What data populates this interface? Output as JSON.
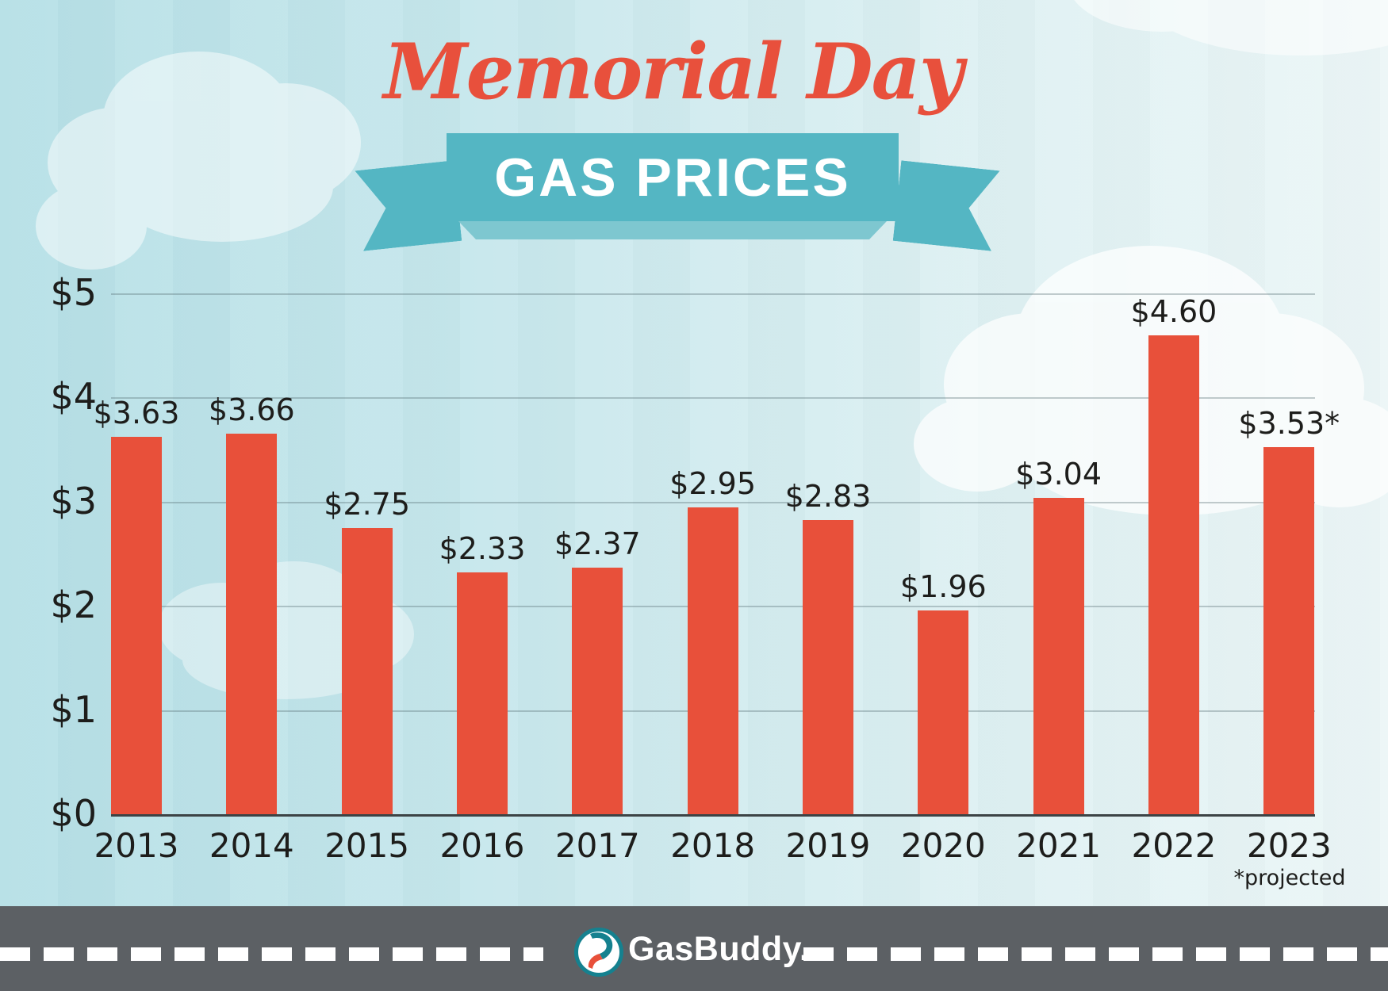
{
  "header": {
    "script_title": "Memorial Day",
    "banner_title": "GAS PRICES"
  },
  "chart_data": {
    "type": "bar",
    "title": "Memorial Day Gas Prices",
    "categories": [
      "2013",
      "2014",
      "2015",
      "2016",
      "2017",
      "2018",
      "2019",
      "2020",
      "2021",
      "2022",
      "2023"
    ],
    "values": [
      3.63,
      3.66,
      2.75,
      2.33,
      2.37,
      2.95,
      2.83,
      1.96,
      3.04,
      4.6,
      3.53
    ],
    "bar_labels": [
      "$3.63",
      "$3.66",
      "$2.75",
      "$2.33",
      "$2.37",
      "$2.95",
      "$2.83",
      "$1.96",
      "$3.04",
      "$4.60",
      "$3.53*"
    ],
    "y_tick_labels": [
      "$0",
      "$1",
      "$2",
      "$3",
      "$4",
      "$5"
    ],
    "y_tick_values": [
      0,
      1,
      2,
      3,
      4,
      5
    ],
    "ylim": [
      0,
      5
    ],
    "xlabel": "",
    "ylabel": "",
    "grid": true,
    "legend": false,
    "footnote": "*projected"
  },
  "footer": {
    "brand": "GasBuddy."
  },
  "colors": {
    "bar": "#e8503a",
    "script_title": "#e8503c",
    "ribbon": "#54b6c3",
    "ribbon_fold": "#7ec7d0",
    "road": "#5c6064",
    "dash": "#ffffff",
    "sky_left": "#b5dfe6",
    "sky_right": "#ecf6f7",
    "ink": "#1d1d1b",
    "logo_teal": "#15818f",
    "logo_red": "#e8503a"
  }
}
